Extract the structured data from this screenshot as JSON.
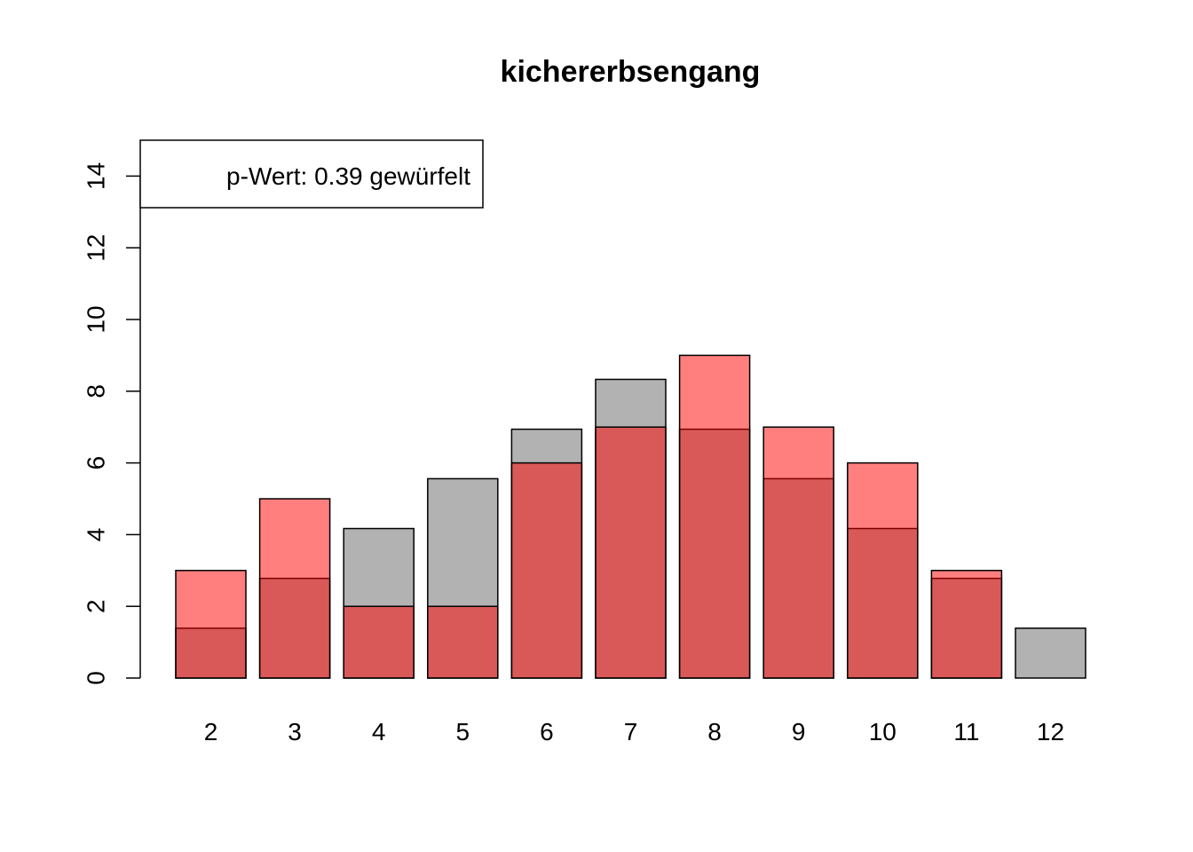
{
  "chart_data": {
    "type": "bar",
    "title": "kichererbsengang",
    "xlabel": "",
    "ylabel": "",
    "categories": [
      "2",
      "3",
      "4",
      "5",
      "6",
      "7",
      "8",
      "9",
      "10",
      "11",
      "12"
    ],
    "series": [
      {
        "values": [
          1.39,
          2.78,
          4.17,
          5.56,
          6.94,
          8.33,
          6.94,
          5.56,
          4.17,
          2.78,
          1.39
        ],
        "color": "#b2b2b2"
      },
      {
        "values": [
          3,
          5,
          2,
          2,
          6,
          7,
          9,
          7,
          6,
          3,
          0
        ],
        "color": "#ff0000",
        "opacity": 0.5
      }
    ],
    "ylim": [
      0,
      15
    ],
    "yticks": [
      0,
      2,
      4,
      6,
      8,
      10,
      12,
      14
    ],
    "ytick_labels": [
      "0",
      "2",
      "4",
      "6",
      "8",
      "10",
      "12",
      "14"
    ],
    "grid": false,
    "legend": {
      "position": "top-left",
      "text": "p-Wert: 0.39 gewürfelt"
    }
  }
}
